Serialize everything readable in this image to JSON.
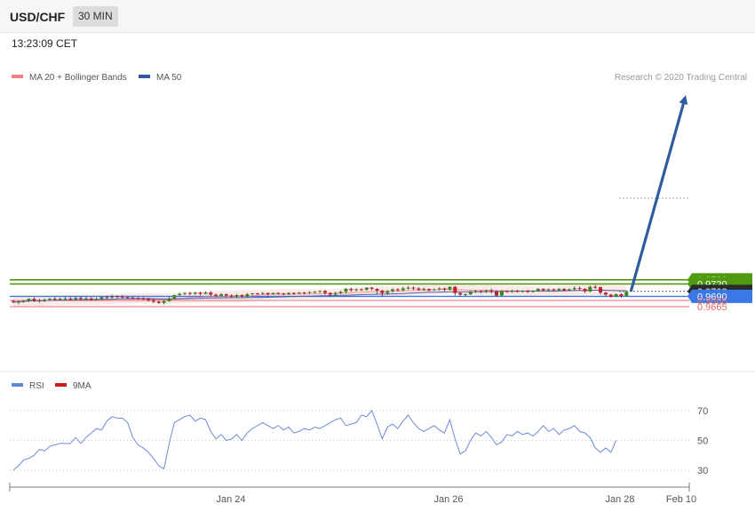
{
  "header": {
    "pair": "USD/CHF",
    "timeframe": "30 MIN",
    "time": "13:23:09 CET"
  },
  "credit": "Research © 2020 Trading Central",
  "colors": {
    "support": "#3b78e7",
    "resistance": "#4f9a10",
    "stop": "#e46b6b",
    "bollinger": "#fde2e2",
    "ma50": "#4a62a8",
    "ma20": "#ee8f8f",
    "rsi": "#6d8ad6",
    "arrow": "#2e5c9e",
    "candle_up": "#3a8a1a",
    "candle_down": "#c3202f"
  },
  "chart_data": [
    {
      "type": "candlestick",
      "legend": [
        {
          "name": "MA 20 + Bollinger Bands",
          "color": "#f08080"
        },
        {
          "name": "MA 50",
          "color": "#34589a"
        }
      ],
      "x_labels": [
        "Jan 24",
        "Jan 26",
        "Jan 28",
        "Feb 10"
      ],
      "ylim": [
        0.966,
        0.9733
      ],
      "current_price": "0.9702",
      "levels": [
        {
          "value": 0.973,
          "label": "0.9730",
          "kind": "resistance"
        },
        {
          "value": 0.972,
          "label": "0.9720",
          "kind": "resistance"
        },
        {
          "value": 0.9702,
          "label": "0.9702",
          "kind": "current"
        },
        {
          "value": 0.969,
          "label": "0.9690",
          "kind": "pivot"
        },
        {
          "value": 0.968,
          "label": "0.9680",
          "kind": "support"
        },
        {
          "value": 0.9665,
          "label": "0.9665",
          "kind": "support"
        }
      ],
      "candles": [
        [
          0.9678,
          0.9676,
          0.9682,
          0.9673
        ],
        [
          0.9676,
          0.9677,
          0.968,
          0.9671
        ],
        [
          0.9677,
          0.9679,
          0.9681,
          0.9674
        ],
        [
          0.9679,
          0.9684,
          0.9685,
          0.9676
        ],
        [
          0.9684,
          0.968,
          0.9687,
          0.9676
        ],
        [
          0.968,
          0.9679,
          0.9684,
          0.9674
        ],
        [
          0.9679,
          0.9682,
          0.9685,
          0.9676
        ],
        [
          0.9682,
          0.9684,
          0.9686,
          0.9679
        ],
        [
          0.9684,
          0.9683,
          0.9688,
          0.9679
        ],
        [
          0.9683,
          0.9684,
          0.9687,
          0.968
        ],
        [
          0.9684,
          0.9685,
          0.9688,
          0.9681
        ],
        [
          0.9685,
          0.9683,
          0.9688,
          0.9679
        ],
        [
          0.9683,
          0.9686,
          0.9689,
          0.968
        ],
        [
          0.9686,
          0.9684,
          0.969,
          0.968
        ],
        [
          0.9684,
          0.9685,
          0.9689,
          0.9681
        ],
        [
          0.9685,
          0.9682,
          0.9688,
          0.9679
        ],
        [
          0.9682,
          0.9684,
          0.9687,
          0.968
        ],
        [
          0.9684,
          0.9688,
          0.969,
          0.9681
        ],
        [
          0.9688,
          0.9687,
          0.9692,
          0.9684
        ],
        [
          0.9687,
          0.969,
          0.9694,
          0.9684
        ],
        [
          0.969,
          0.9689,
          0.9692,
          0.9685
        ],
        [
          0.9689,
          0.9688,
          0.9693,
          0.9685
        ],
        [
          0.9688,
          0.9687,
          0.969,
          0.9683
        ],
        [
          0.9687,
          0.9686,
          0.969,
          0.9683
        ],
        [
          0.9686,
          0.9685,
          0.9688,
          0.9682
        ],
        [
          0.9685,
          0.9684,
          0.9688,
          0.9681
        ],
        [
          0.9684,
          0.9681,
          0.9686,
          0.9677
        ],
        [
          0.9681,
          0.9677,
          0.9684,
          0.9673
        ],
        [
          0.9677,
          0.9674,
          0.968,
          0.9671
        ],
        [
          0.9674,
          0.9678,
          0.9681,
          0.9671
        ],
        [
          0.9678,
          0.9685,
          0.9688,
          0.9677
        ],
        [
          0.9685,
          0.9693,
          0.9694,
          0.9683
        ],
        [
          0.9693,
          0.9696,
          0.9699,
          0.969
        ],
        [
          0.9696,
          0.9698,
          0.97,
          0.9693
        ],
        [
          0.9698,
          0.9696,
          0.9701,
          0.9693
        ],
        [
          0.9696,
          0.9699,
          0.9701,
          0.9694
        ],
        [
          0.9699,
          0.9696,
          0.9701,
          0.9692
        ],
        [
          0.9696,
          0.9699,
          0.9702,
          0.9695
        ],
        [
          0.9699,
          0.9694,
          0.9703,
          0.9691
        ],
        [
          0.9694,
          0.9691,
          0.9697,
          0.9689
        ],
        [
          0.9691,
          0.9695,
          0.9698,
          0.969
        ],
        [
          0.9695,
          0.9692,
          0.9697,
          0.9688
        ],
        [
          0.9692,
          0.9689,
          0.9695,
          0.9686
        ],
        [
          0.9689,
          0.9693,
          0.9696,
          0.9687
        ],
        [
          0.9693,
          0.969,
          0.9695,
          0.9686
        ],
        [
          0.969,
          0.9695,
          0.9698,
          0.9688
        ],
        [
          0.9695,
          0.9697,
          0.9698,
          0.9692
        ],
        [
          0.9697,
          0.9696,
          0.9699,
          0.9693
        ],
        [
          0.9696,
          0.9698,
          0.97,
          0.9694
        ],
        [
          0.9698,
          0.9695,
          0.9699,
          0.9692
        ],
        [
          0.9695,
          0.9698,
          0.9699,
          0.9694
        ],
        [
          0.9698,
          0.9697,
          0.97,
          0.9694
        ],
        [
          0.9697,
          0.9695,
          0.9699,
          0.9692
        ],
        [
          0.9695,
          0.9698,
          0.97,
          0.9693
        ],
        [
          0.9698,
          0.9697,
          0.97,
          0.9694
        ],
        [
          0.9697,
          0.9699,
          0.9701,
          0.9695
        ],
        [
          0.9699,
          0.9698,
          0.9701,
          0.9695
        ],
        [
          0.9698,
          0.97,
          0.9702,
          0.9696
        ],
        [
          0.97,
          0.9701,
          0.9703,
          0.9697
        ],
        [
          0.9701,
          0.9703,
          0.9704,
          0.9698
        ],
        [
          0.9703,
          0.9698,
          0.9705,
          0.9694
        ],
        [
          0.9698,
          0.9694,
          0.97,
          0.969
        ],
        [
          0.9694,
          0.9698,
          0.9701,
          0.9691
        ],
        [
          0.9698,
          0.9701,
          0.9703,
          0.9695
        ],
        [
          0.9701,
          0.9708,
          0.971,
          0.9697
        ],
        [
          0.9708,
          0.9705,
          0.9711,
          0.9701
        ],
        [
          0.9705,
          0.9707,
          0.9709,
          0.9702
        ],
        [
          0.9707,
          0.9706,
          0.9709,
          0.9703
        ],
        [
          0.9706,
          0.9711,
          0.9712,
          0.9703
        ],
        [
          0.9711,
          0.9708,
          0.9713,
          0.9704
        ],
        [
          0.9708,
          0.9704,
          0.971,
          0.9696
        ],
        [
          0.9704,
          0.9698,
          0.9706,
          0.9689
        ],
        [
          0.9698,
          0.9703,
          0.9705,
          0.9693
        ],
        [
          0.9703,
          0.9707,
          0.9709,
          0.9699
        ],
        [
          0.9707,
          0.9705,
          0.971,
          0.9701
        ],
        [
          0.9705,
          0.9709,
          0.9713,
          0.9702
        ],
        [
          0.9709,
          0.9711,
          0.9715,
          0.9706
        ],
        [
          0.9711,
          0.9709,
          0.9714,
          0.9705
        ],
        [
          0.9709,
          0.9706,
          0.9712,
          0.9703
        ],
        [
          0.9706,
          0.9708,
          0.9711,
          0.9704
        ],
        [
          0.9708,
          0.9705,
          0.9709,
          0.9701
        ],
        [
          0.9705,
          0.9707,
          0.9709,
          0.9703
        ],
        [
          0.9707,
          0.9709,
          0.9712,
          0.9704
        ],
        [
          0.9709,
          0.9706,
          0.9711,
          0.9702
        ],
        [
          0.9706,
          0.9713,
          0.9714,
          0.9704
        ],
        [
          0.9713,
          0.9698,
          0.9715,
          0.9692
        ],
        [
          0.9698,
          0.9694,
          0.97,
          0.9691
        ],
        [
          0.9694,
          0.9695,
          0.9697,
          0.9691
        ],
        [
          0.9695,
          0.9701,
          0.9703,
          0.9693
        ],
        [
          0.9701,
          0.9703,
          0.9705,
          0.9698
        ],
        [
          0.9703,
          0.9701,
          0.9705,
          0.9697
        ],
        [
          0.9701,
          0.9704,
          0.9706,
          0.9698
        ],
        [
          0.9704,
          0.9701,
          0.9709,
          0.9697
        ],
        [
          0.9701,
          0.9692,
          0.9704,
          0.9689
        ],
        [
          0.9692,
          0.9703,
          0.9705,
          0.969
        ],
        [
          0.9703,
          0.9701,
          0.9705,
          0.9698
        ],
        [
          0.9701,
          0.9704,
          0.9706,
          0.9699
        ],
        [
          0.9704,
          0.9702,
          0.9706,
          0.9699
        ],
        [
          0.9702,
          0.9704,
          0.9705,
          0.9699
        ],
        [
          0.9704,
          0.9701,
          0.9706,
          0.9698
        ],
        [
          0.9701,
          0.9703,
          0.9705,
          0.9699
        ],
        [
          0.9703,
          0.9708,
          0.971,
          0.9701
        ],
        [
          0.9708,
          0.9705,
          0.971,
          0.9702
        ],
        [
          0.9705,
          0.9707,
          0.9709,
          0.9703
        ],
        [
          0.9707,
          0.9705,
          0.9709,
          0.9703
        ],
        [
          0.9705,
          0.9708,
          0.971,
          0.9703
        ],
        [
          0.9708,
          0.9705,
          0.971,
          0.9702
        ],
        [
          0.9705,
          0.9707,
          0.9709,
          0.9703
        ],
        [
          0.9707,
          0.971,
          0.9714,
          0.9705
        ],
        [
          0.971,
          0.9708,
          0.9714,
          0.9705
        ],
        [
          0.9708,
          0.9702,
          0.971,
          0.9698
        ],
        [
          0.9702,
          0.9713,
          0.9716,
          0.97
        ],
        [
          0.9713,
          0.9712,
          0.9717,
          0.9708
        ],
        [
          0.9712,
          0.9699,
          0.9714,
          0.9694
        ],
        [
          0.9699,
          0.9694,
          0.9701,
          0.9689
        ],
        [
          0.9694,
          0.9689,
          0.9696,
          0.9687
        ],
        [
          0.9689,
          0.9695,
          0.9697,
          0.9688
        ],
        [
          0.9695,
          0.9691,
          0.9697,
          0.9687
        ],
        [
          0.9691,
          0.9701,
          0.9702,
          0.969
        ]
      ]
    },
    {
      "type": "line",
      "legend": [
        {
          "name": "RSI",
          "color": "#5b86d8"
        },
        {
          "name": "9MA",
          "color": "#d11a1a"
        }
      ],
      "ylim": [
        22,
        78
      ],
      "y_ticks": [
        "70",
        "50",
        "30"
      ],
      "rsi": [
        30,
        33,
        37,
        38,
        40,
        44,
        43,
        46,
        47,
        48,
        48,
        48,
        52,
        48,
        52,
        55,
        58,
        57,
        63,
        66,
        65,
        65,
        62,
        52,
        47,
        45,
        42,
        38,
        33,
        31,
        48,
        62,
        64,
        66,
        67,
        63,
        65,
        64,
        56,
        51,
        54,
        50,
        51,
        54,
        50,
        55,
        58,
        60,
        62,
        60,
        58,
        60,
        57,
        59,
        55,
        56,
        58,
        57,
        59,
        58,
        60,
        62,
        64,
        65,
        60,
        61,
        62,
        67,
        66,
        70,
        61,
        51,
        59,
        61,
        58,
        63,
        67,
        62,
        58,
        56,
        58,
        60,
        57,
        55,
        64,
        51,
        41,
        43,
        50,
        55,
        53,
        56,
        52,
        47,
        49,
        54,
        53,
        56,
        54,
        55,
        53,
        56,
        60,
        56,
        58,
        54,
        57,
        58,
        60,
        56,
        55,
        52,
        45,
        42,
        45,
        42,
        50
      ]
    }
  ]
}
